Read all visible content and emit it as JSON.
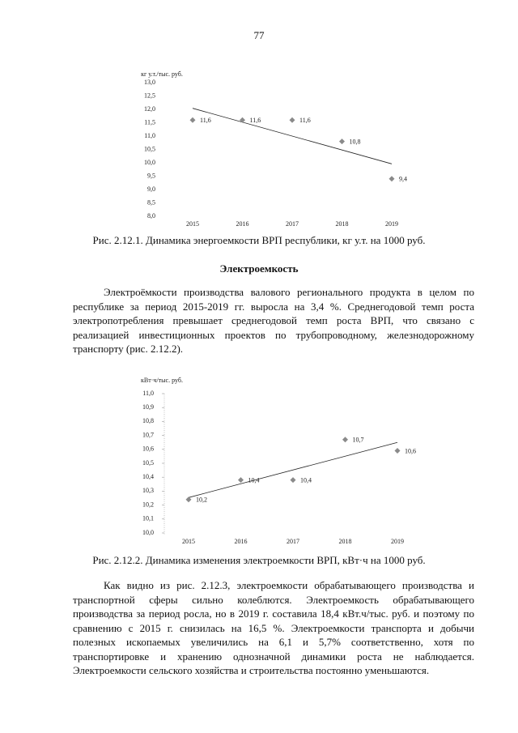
{
  "page_number": "77",
  "chart_data": [
    {
      "type": "scatter",
      "y_label": "кг у.т./тыс. руб.",
      "categories": [
        "2015",
        "2016",
        "2017",
        "2018",
        "2019"
      ],
      "values": [
        11.6,
        11.6,
        11.6,
        10.8,
        9.4
      ],
      "value_labels": [
        "11,6",
        "11,6",
        "11,6",
        "10,8",
        "9,4"
      ],
      "color": "#8a8a8a",
      "trendline": true,
      "ylim": [
        8,
        13
      ],
      "yticks": [
        {
          "value": 8,
          "label": "8,0"
        },
        {
          "value": 8.5,
          "label": "8,5"
        },
        {
          "value": 9,
          "label": "9,0"
        },
        {
          "value": 9.5,
          "label": "9,5"
        },
        {
          "value": 10,
          "label": "10,0"
        },
        {
          "value": 10.5,
          "label": "10,5"
        },
        {
          "value": 11,
          "label": "11,0"
        },
        {
          "value": 11.5,
          "label": "11,5"
        },
        {
          "value": 12,
          "label": "12,0"
        },
        {
          "value": 12.5,
          "label": "12,5"
        },
        {
          "value": 13,
          "label": "13,0"
        }
      ],
      "caption": "Рис. 2.12.1. Динамика энергоемкости ВРП республики, кг у.т. на 1000 руб."
    },
    {
      "type": "scatter",
      "y_label": "кВт·ч/тыс. руб.",
      "categories": [
        "2015",
        "2016",
        "2017",
        "2018",
        "2019"
      ],
      "values": [
        10.24,
        10.38,
        10.38,
        10.67,
        10.59
      ],
      "value_labels": [
        "10,2",
        "10,4",
        "10,4",
        "10,7",
        "10,6"
      ],
      "color": "#8a8a8a",
      "trendline": true,
      "ylim": [
        10,
        11
      ],
      "yticks": [
        {
          "value": 10,
          "label": "10,0"
        },
        {
          "value": 10.1,
          "label": "10,1"
        },
        {
          "value": 10.2,
          "label": "10,2"
        },
        {
          "value": 10.3,
          "label": "10,3"
        },
        {
          "value": 10.4,
          "label": "10,4"
        },
        {
          "value": 10.5,
          "label": "10,5"
        },
        {
          "value": 10.6,
          "label": "10,6"
        },
        {
          "value": 10.7,
          "label": "10,7"
        },
        {
          "value": 10.8,
          "label": "10,8"
        },
        {
          "value": 10.9,
          "label": "10,9"
        },
        {
          "value": 11,
          "label": "11,0"
        }
      ],
      "caption": "Рис. 2.12.2. Динамика изменения электроемкости ВРП, кВт·ч на 1000 руб."
    }
  ],
  "heading": "Электроемкость",
  "paragraphs": [
    "Электроёмкости производства валового регионального продукта в целом по республике за период 2015-2019 гг. выросла на 3,4 %. Среднегодовой темп роста электропотребления превышает среднегодовой темп роста ВРП, что связано с реализацией инвестиционных проектов по трубопроводному, железнодорожному транспорту (рис. 2.12.2).",
    "Как видно из рис. 2.12.3, электроемкости обрабатывающего производства и транспортной сферы сильно колеблются. Электроемкость обрабатывающего производства за период росла, но в 2019 г. составила 18,4 кВт.ч/тыс. руб. и поэтому по сравнению с 2015 г. снизилась на 16,5 %. Электроемкости транспорта и добычи полезных ископаемых увеличились на 6,1 и 5,7% соответственно, хотя по транспортировке и хранению однозначной динамики роста не наблюдается. Электроемкости сельского хозяйства и строительства постоянно уменьшаются."
  ]
}
